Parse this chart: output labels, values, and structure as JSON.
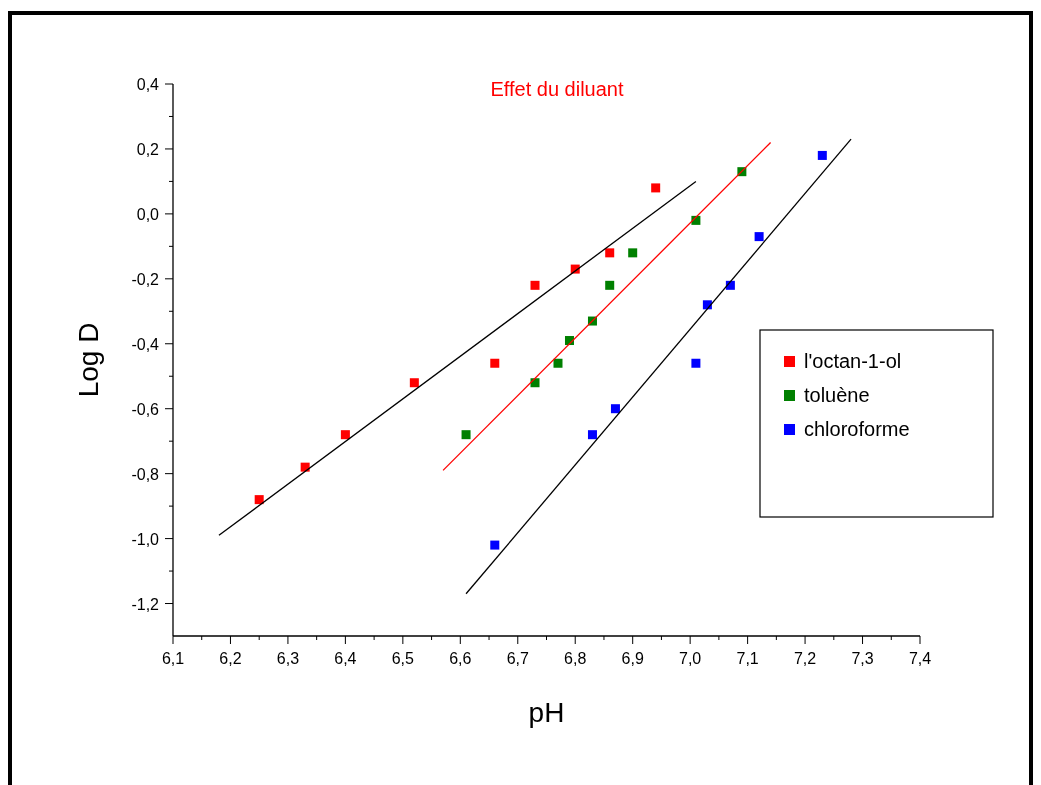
{
  "chart_data": {
    "type": "scatter",
    "title": "Effet du diluant",
    "xlabel": "pH",
    "ylabel": "Log D",
    "marker": "square",
    "legend": "right",
    "grid": false,
    "xlim": [
      6.1,
      7.4
    ],
    "ylim": [
      -1.3,
      0.4
    ],
    "xticks": [
      {
        "value": 6.1,
        "label": "6,1"
      },
      {
        "value": 6.2,
        "label": "6,2"
      },
      {
        "value": 6.3,
        "label": "6,3"
      },
      {
        "value": 6.4,
        "label": "6,4"
      },
      {
        "value": 6.5,
        "label": "6,5"
      },
      {
        "value": 6.6,
        "label": "6,6"
      },
      {
        "value": 6.7,
        "label": "6,7"
      },
      {
        "value": 6.8,
        "label": "6,8"
      },
      {
        "value": 6.9,
        "label": "6,9"
      },
      {
        "value": 7.0,
        "label": "7,0"
      },
      {
        "value": 7.1,
        "label": "7,1"
      },
      {
        "value": 7.2,
        "label": "7,2"
      },
      {
        "value": 7.3,
        "label": "7,3"
      },
      {
        "value": 7.4,
        "label": "7,4"
      }
    ],
    "yticks": [
      {
        "value": -1.2,
        "label": "-1,2"
      },
      {
        "value": -1.0,
        "label": "-1,0"
      },
      {
        "value": -0.8,
        "label": "-0,8"
      },
      {
        "value": -0.6,
        "label": "-0,6"
      },
      {
        "value": -0.4,
        "label": "-0,4"
      },
      {
        "value": -0.2,
        "label": "-0,2"
      },
      {
        "value": 0,
        "label": "0,0"
      },
      {
        "value": 0.2,
        "label": "0,2"
      },
      {
        "value": 0.4,
        "label": "0,4"
      }
    ],
    "series": [
      {
        "name": "l'octan-1-ol",
        "color": "#ff0000",
        "x": [
          6.25,
          6.33,
          6.4,
          6.52,
          6.66,
          6.73,
          6.8,
          6.86,
          6.94
        ],
        "values": [
          -0.88,
          -0.78,
          -0.68,
          -0.52,
          -0.46,
          -0.22,
          -0.17,
          -0.12,
          0.08
        ]
      },
      {
        "name": "toluène",
        "color": "#008000",
        "x": [
          6.61,
          6.73,
          6.77,
          6.79,
          6.83,
          6.86,
          6.9,
          7.01,
          7.09
        ],
        "values": [
          -0.68,
          -0.52,
          -0.46,
          -0.39,
          -0.33,
          -0.22,
          -0.12,
          -0.02,
          0.13
        ]
      },
      {
        "name": "chloroforme",
        "color": "#0000ff",
        "x": [
          6.66,
          6.83,
          6.87,
          7.01,
          7.03,
          7.07,
          7.12,
          7.23
        ],
        "values": [
          -1.02,
          -0.68,
          -0.6,
          -0.46,
          -0.28,
          -0.22,
          -0.07,
          0.18
        ]
      },
      {
        "type": "line",
        "color": "#000000",
        "marker": "none",
        "x": [
          6.18,
          7.01
        ],
        "values": [
          -0.99,
          0.1
        ]
      },
      {
        "type": "line",
        "color": "#ff0000",
        "marker": "none",
        "x": [
          6.57,
          7.14
        ],
        "values": [
          -0.79,
          0.22
        ]
      },
      {
        "type": "line",
        "color": "#000000",
        "marker": "none",
        "x": [
          6.61,
          7.28
        ],
        "values": [
          -1.17,
          0.23
        ]
      }
    ]
  }
}
